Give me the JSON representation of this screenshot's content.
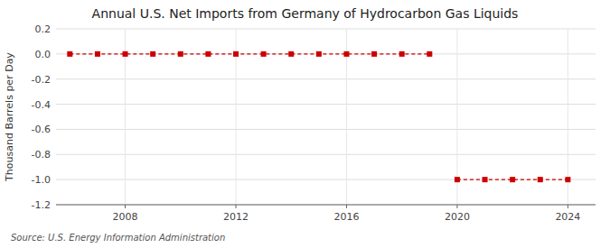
{
  "chart_data": {
    "type": "line",
    "title": "Annual U.S. Net Imports from Germany of Hydrocarbon Gas Liquids",
    "ylabel": "Thousand Barrels per Day",
    "source": "Source: U.S. Energy Information Administration",
    "x": [
      2006,
      2007,
      2008,
      2009,
      2010,
      2011,
      2012,
      2013,
      2014,
      2015,
      2016,
      2017,
      2018,
      2019,
      2020,
      2021,
      2022,
      2023,
      2024
    ],
    "values": [
      0,
      0,
      0,
      0,
      0,
      0,
      0,
      0,
      0,
      0,
      0,
      0,
      0,
      0,
      -1,
      -1,
      -1,
      -1,
      -1
    ],
    "color": "#cc0000",
    "marker": "square",
    "line_style": "dashed",
    "xlim": [
      2005.5,
      2025.0
    ],
    "xticks": [
      2008,
      2012,
      2016,
      2020,
      2024
    ],
    "ylim": [
      -1.2,
      0.2
    ],
    "yticks": [
      0.2,
      {
        "value": 0,
        "label": "0.0"
      },
      -0.2,
      -0.4,
      -0.6,
      -0.8,
      {
        "value": -1,
        "label": "-1.0"
      },
      -1.2
    ],
    "grid": true
  }
}
